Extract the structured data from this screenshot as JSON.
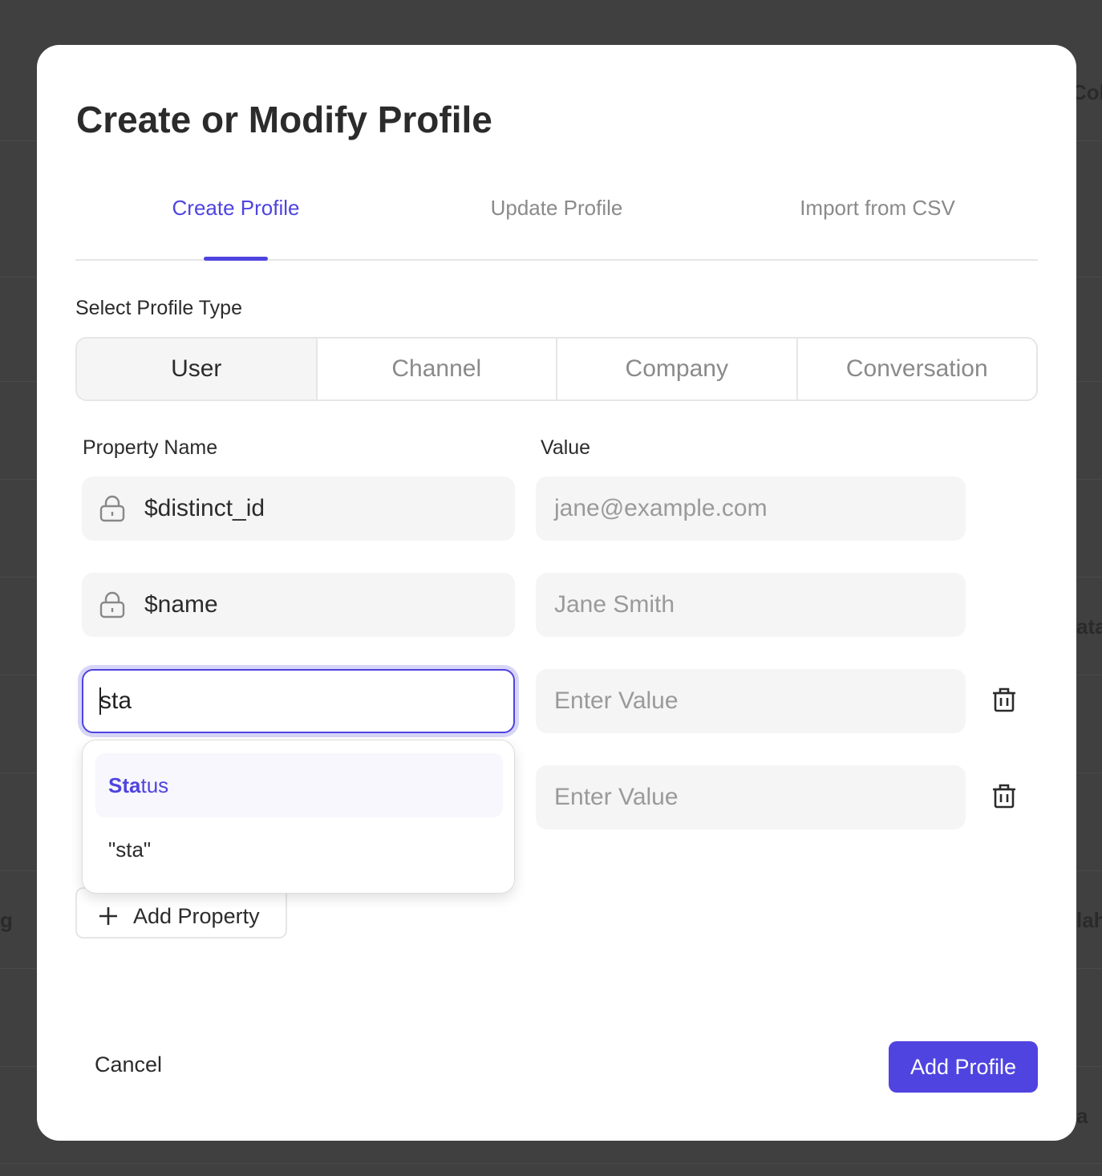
{
  "background": {
    "fragments": [
      "Col",
      "ata",
      "g",
      "lah",
      "a"
    ]
  },
  "modal": {
    "title": "Create or Modify Profile",
    "tabs": [
      {
        "label": "Create Profile",
        "active": true
      },
      {
        "label": "Update Profile"
      },
      {
        "label": "Import from CSV"
      }
    ],
    "profile_type_label": "Select Profile Type",
    "profile_types": [
      {
        "label": "User",
        "selected": true
      },
      {
        "label": "Channel"
      },
      {
        "label": "Company"
      },
      {
        "label": "Conversation"
      }
    ],
    "columns": {
      "name": "Property Name",
      "value": "Value"
    },
    "rows": [
      {
        "name": "$distinct_id",
        "locked": true,
        "value_placeholder": "jane@example.com"
      },
      {
        "name": "$name",
        "locked": true,
        "value_placeholder": "Jane Smith"
      },
      {
        "name": "sta",
        "value_placeholder": "Enter Value",
        "focused": true
      },
      {
        "value_placeholder": "Enter Value"
      }
    ],
    "autocomplete": {
      "match": "Sta",
      "rest": "tus",
      "raw": "\"sta\""
    },
    "add_property": "Add Property",
    "cancel": "Cancel",
    "submit": "Add Profile",
    "accent": "#4f44e0"
  }
}
